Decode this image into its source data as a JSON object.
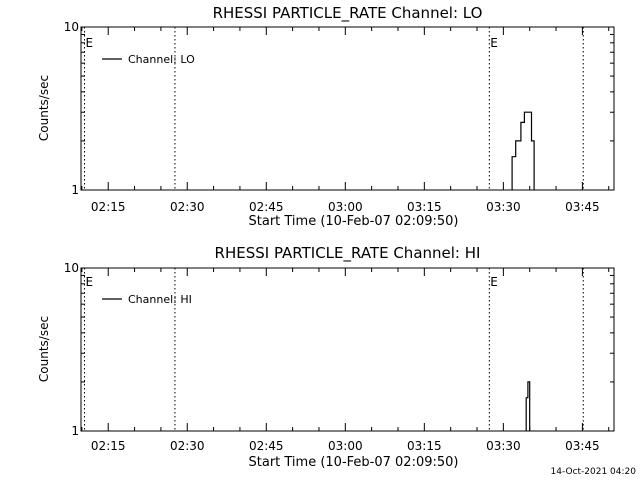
{
  "footer": "14-Oct-2021 04:20",
  "chart_data": [
    {
      "type": "line",
      "title": "RHESSI PARTICLE_RATE Channel: LO",
      "xlabel": "Start Time (10-Feb-07 02:09:50)",
      "ylabel": "Counts/sec",
      "y_scale": "log",
      "ylim": [
        1,
        10
      ],
      "xlim": [
        "02:09:50",
        "03:51:00"
      ],
      "x_ticks": [
        "02:15",
        "02:30",
        "02:45",
        "03:00",
        "03:15",
        "03:30",
        "03:45"
      ],
      "y_ticks": [
        {
          "value": 1,
          "label": "1"
        },
        {
          "value": 10,
          "label": "10"
        }
      ],
      "legend": {
        "position": "top-left",
        "entries": [
          "Channel: LO"
        ]
      },
      "markers": [
        {
          "time": "02:10:30",
          "label": "E"
        },
        {
          "time": "02:27:40",
          "label": ""
        },
        {
          "time": "03:27:20",
          "label": "E"
        },
        {
          "time": "03:45:10",
          "label": ""
        }
      ],
      "series": [
        {
          "name": "Channel: LO",
          "points": [
            {
              "x": "03:31:40",
              "y": 1.0
            },
            {
              "x": "03:31:40",
              "y": 1.6
            },
            {
              "x": "03:32:20",
              "y": 1.6
            },
            {
              "x": "03:32:20",
              "y": 2.0
            },
            {
              "x": "03:33:20",
              "y": 2.0
            },
            {
              "x": "03:33:20",
              "y": 2.6
            },
            {
              "x": "03:34:00",
              "y": 2.6
            },
            {
              "x": "03:34:00",
              "y": 3.0
            },
            {
              "x": "03:35:20",
              "y": 3.0
            },
            {
              "x": "03:35:20",
              "y": 2.0
            },
            {
              "x": "03:35:50",
              "y": 2.0
            },
            {
              "x": "03:35:50",
              "y": 1.0
            }
          ]
        }
      ]
    },
    {
      "type": "line",
      "title": "RHESSI PARTICLE_RATE Channel: HI",
      "xlabel": "Start Time (10-Feb-07 02:09:50)",
      "ylabel": "Counts/sec",
      "y_scale": "log",
      "ylim": [
        1,
        10
      ],
      "xlim": [
        "02:09:50",
        "03:51:00"
      ],
      "x_ticks": [
        "02:15",
        "02:30",
        "02:45",
        "03:00",
        "03:15",
        "03:30",
        "03:45"
      ],
      "y_ticks": [
        {
          "value": 1,
          "label": "1"
        },
        {
          "value": 10,
          "label": "10"
        }
      ],
      "legend": {
        "position": "top-left",
        "entries": [
          "Channel: HI"
        ]
      },
      "markers": [
        {
          "time": "02:10:30",
          "label": "E"
        },
        {
          "time": "02:27:40",
          "label": ""
        },
        {
          "time": "03:27:20",
          "label": "E"
        },
        {
          "time": "03:45:10",
          "label": ""
        }
      ],
      "series": [
        {
          "name": "Channel: HI",
          "points": [
            {
              "x": "03:34:20",
              "y": 1.0
            },
            {
              "x": "03:34:20",
              "y": 1.6
            },
            {
              "x": "03:34:40",
              "y": 1.6
            },
            {
              "x": "03:34:40",
              "y": 2.0
            },
            {
              "x": "03:35:00",
              "y": 2.0
            },
            {
              "x": "03:35:00",
              "y": 1.0
            }
          ]
        }
      ]
    }
  ]
}
